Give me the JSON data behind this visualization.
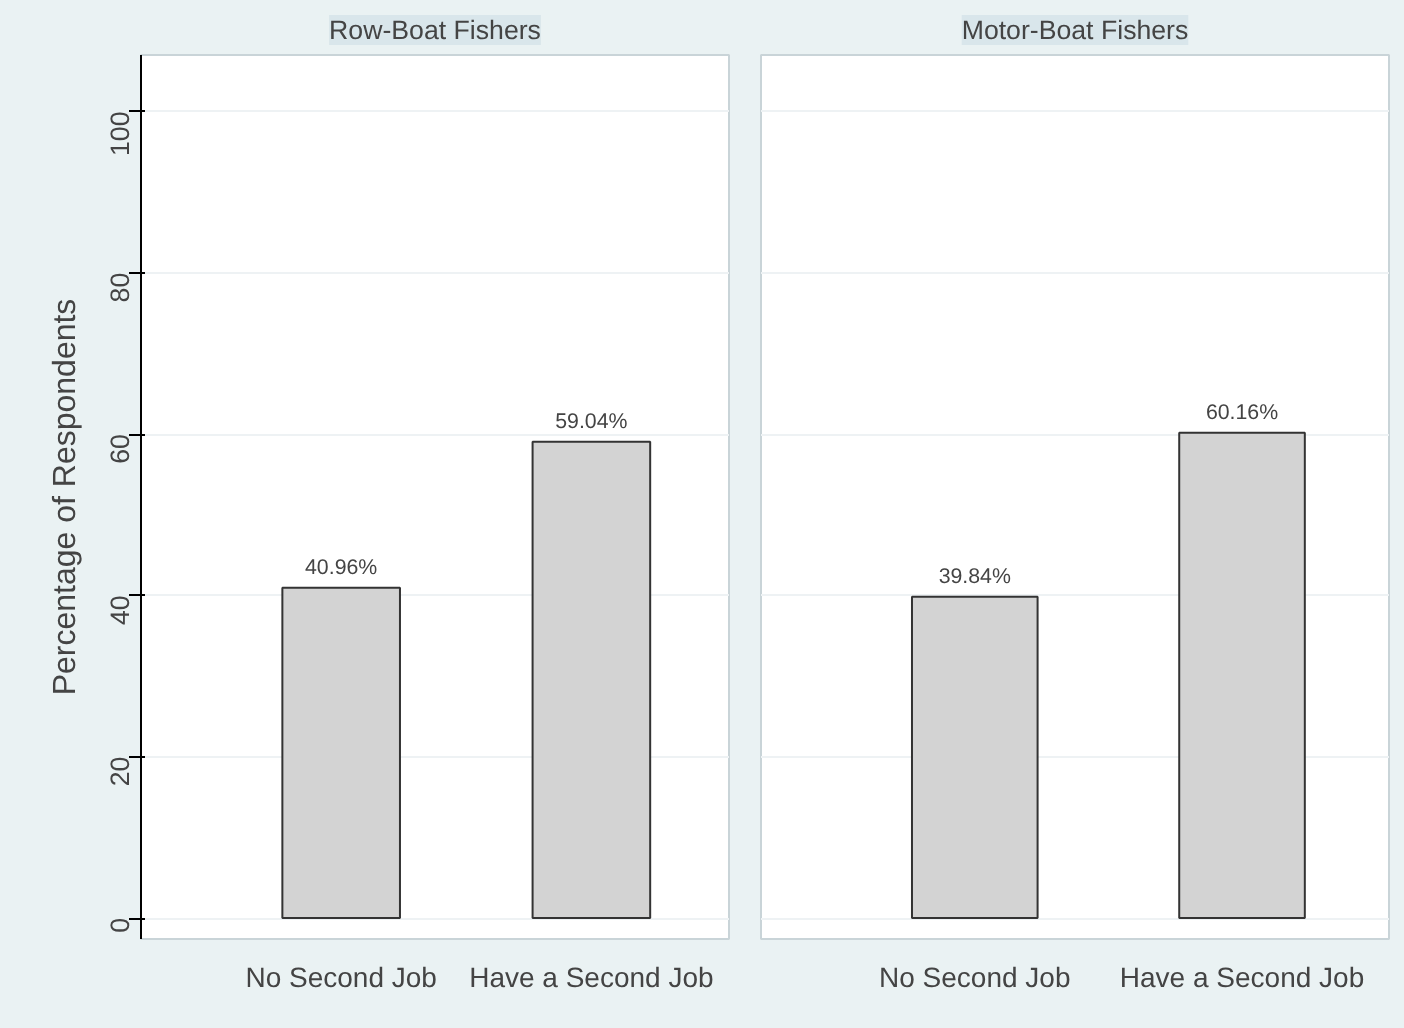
{
  "chart_data": [
    {
      "type": "bar",
      "title": "Row-Boat Fishers",
      "ylabel": "Percentage of Respondents",
      "categories": [
        "No Second Job",
        "Have a Second Job"
      ],
      "values": [
        40.96,
        59.04
      ],
      "value_labels": [
        "40.96%",
        "59.04%"
      ],
      "color": "#d3d3d3",
      "ylim": [
        -2.6,
        107
      ],
      "yticks": [
        0,
        20,
        40,
        60,
        80,
        100
      ],
      "grid": "y"
    },
    {
      "type": "bar",
      "title": "Motor-Boat Fishers",
      "categories": [
        "No Second Job",
        "Have a Second Job"
      ],
      "values": [
        39.84,
        60.16
      ],
      "value_labels": [
        "39.84%",
        "60.16%"
      ],
      "color": "#d3d3d3",
      "ylim": [
        -2.6,
        107
      ],
      "yticks": [
        0,
        20,
        40,
        60,
        80,
        100
      ],
      "grid": "y",
      "tick_labels": "x"
    }
  ]
}
